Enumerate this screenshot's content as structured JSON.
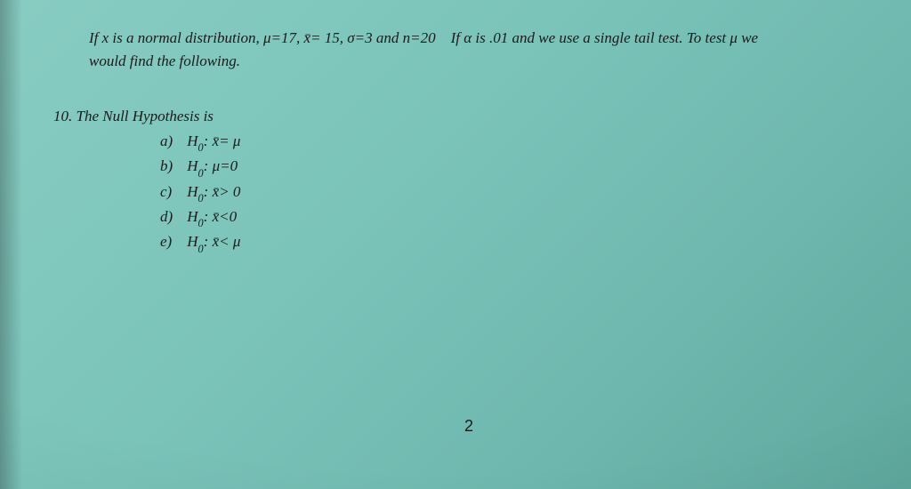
{
  "problem": {
    "line1": "If x is a normal distribution, μ=17, x̄= 15, σ=3 and n=20 If α is .01 and we use a single tail test.  To test μ we",
    "line2": "would find the following."
  },
  "question": {
    "number": "10.",
    "title": "The Null Hypothesis is",
    "choices": [
      {
        "letter": "a)",
        "prefix": "H",
        "sub": "0",
        "rest": ": x̄= μ"
      },
      {
        "letter": "b)",
        "prefix": "H",
        "sub": "0",
        "rest": ": μ=0"
      },
      {
        "letter": "c)",
        "prefix": "H",
        "sub": "0",
        "rest": ": x̄> 0"
      },
      {
        "letter": "d)",
        "prefix": "H",
        "sub": "0",
        "rest": ": x̄<0"
      },
      {
        "letter": "e)",
        "prefix": "H",
        "sub": "0",
        "rest": ": x̄< μ"
      }
    ]
  },
  "pageNumber": "2"
}
